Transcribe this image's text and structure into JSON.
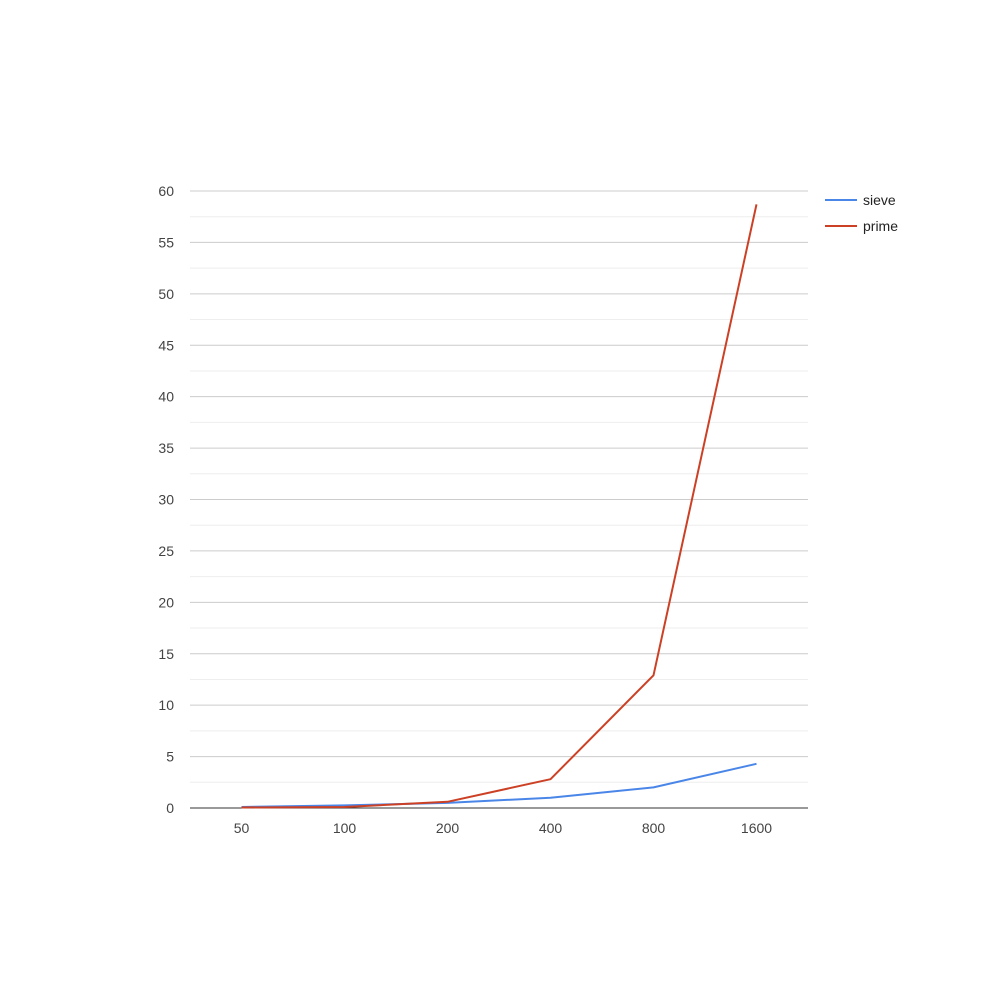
{
  "chart_data": {
    "type": "line",
    "title": "",
    "xlabel": "",
    "ylabel": "",
    "categories": [
      "50",
      "100",
      "200",
      "400",
      "800",
      "1600"
    ],
    "series": [
      {
        "name": "sieve",
        "color": "#4a86e8",
        "values": [
          0.1,
          0.25,
          0.5,
          1.0,
          2.0,
          4.3
        ]
      },
      {
        "name": "prime",
        "color": "#cc4125",
        "values": [
          0.05,
          0.1,
          0.6,
          2.8,
          12.9,
          58.7
        ]
      }
    ],
    "ylim": [
      0,
      60
    ],
    "yticks": [
      0,
      5,
      10,
      15,
      20,
      25,
      30,
      35,
      40,
      45,
      50,
      55,
      60
    ],
    "minor_gridlines": true,
    "grid": true,
    "legend_position": "right"
  }
}
